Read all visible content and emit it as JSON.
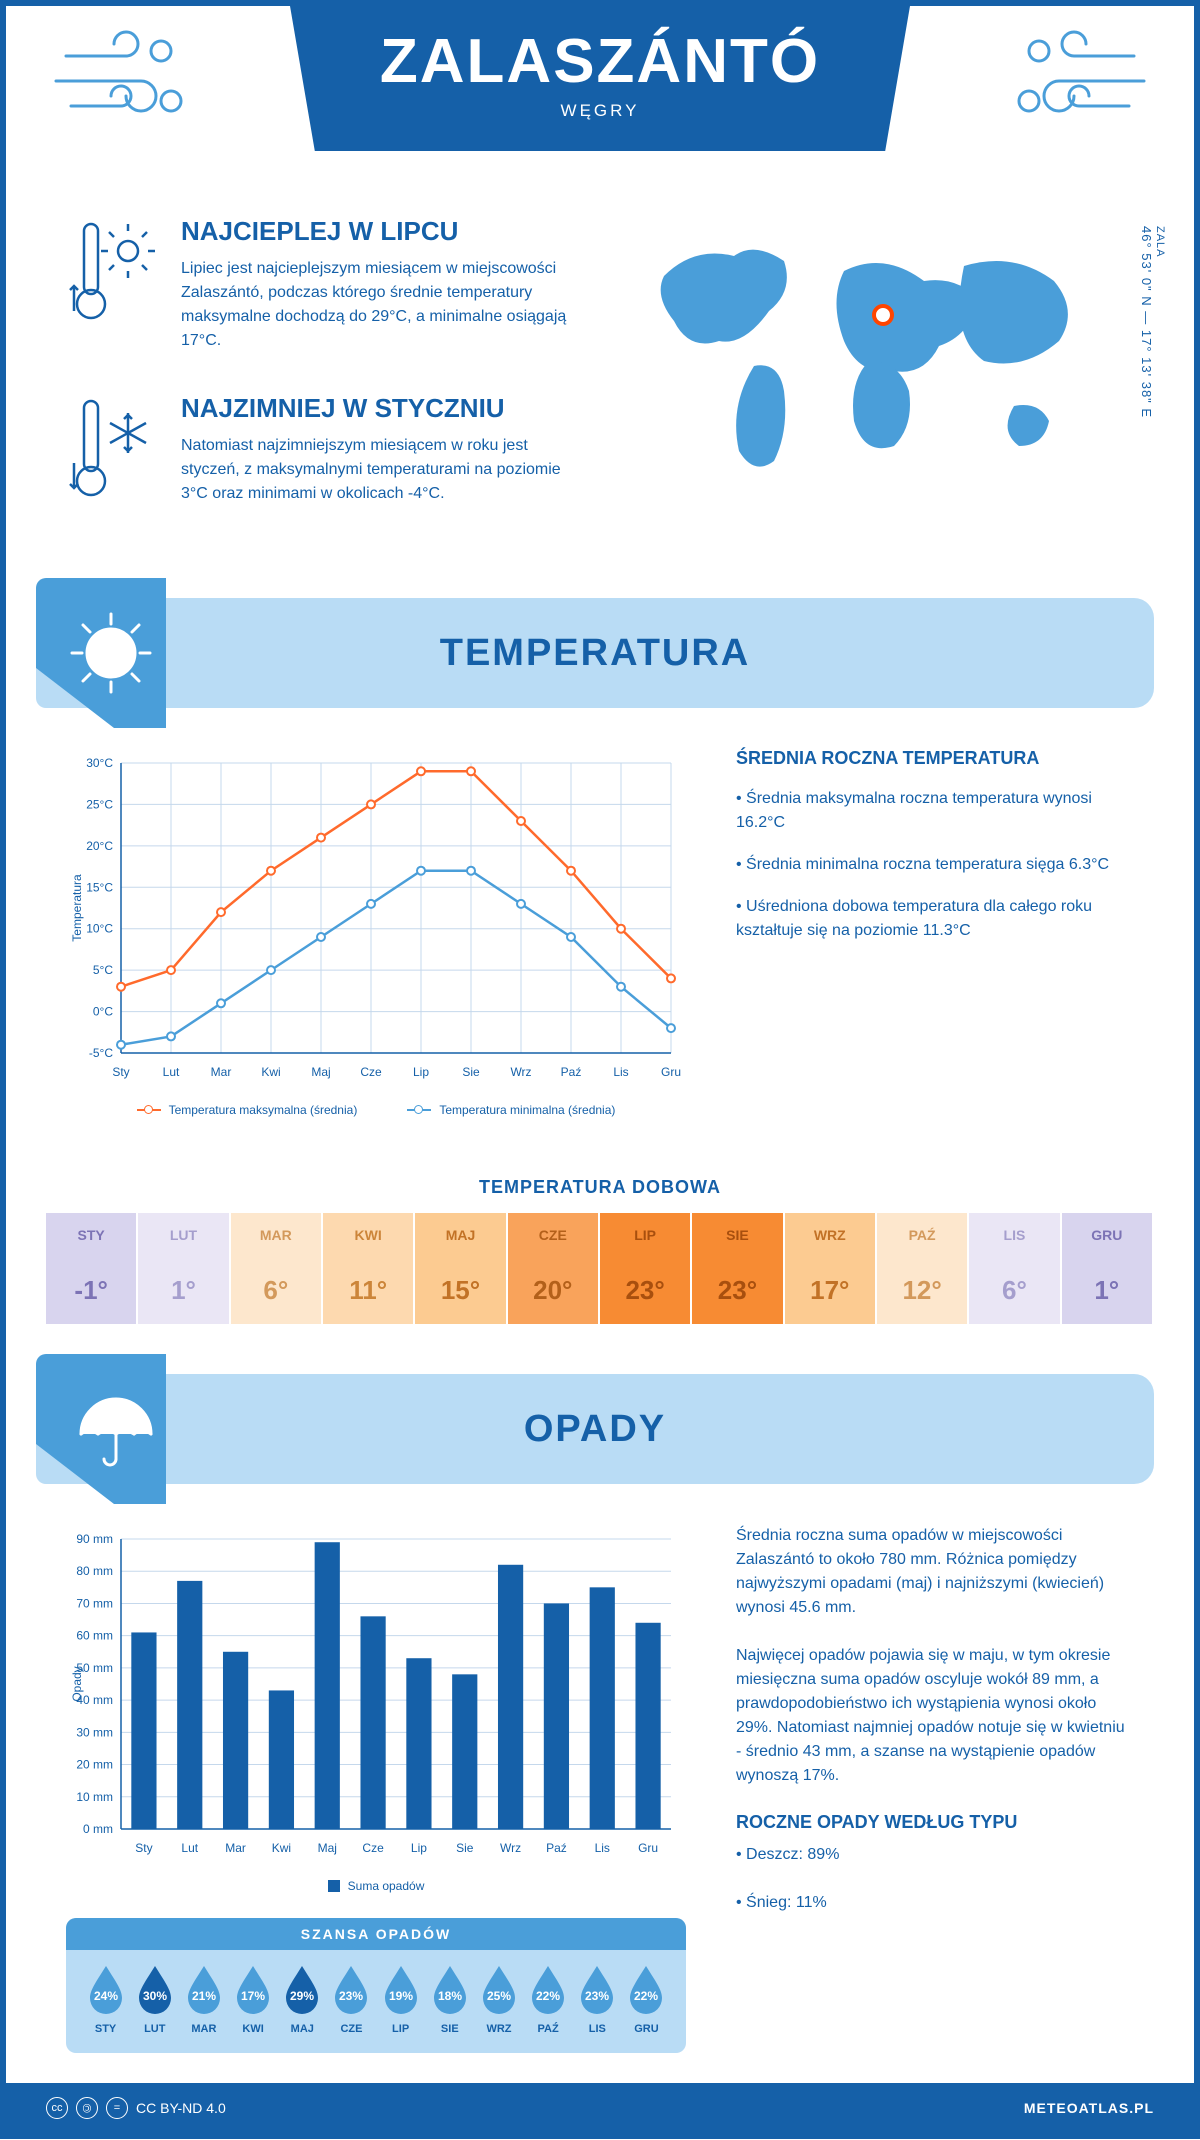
{
  "header": {
    "city": "ZALASZÁNTÓ",
    "country": "WĘGRY",
    "region": "ZALA",
    "coords": "46° 53' 0\" N — 17° 13' 38\" E"
  },
  "intro": {
    "hot": {
      "title": "NAJCIEPLEJ W LIPCU",
      "text": "Lipiec jest najcieplejszym miesiącem w miejscowości Zalaszántó, podczas którego średnie temperatury maksymalne dochodzą do 29°C, a minimalne osiągają 17°C."
    },
    "cold": {
      "title": "NAJZIMNIEJ W STYCZNIU",
      "text": "Natomiast najzimniejszym miesiącem w roku jest styczeń, z maksymalnymi temperaturami na poziomie 3°C oraz minimami w okolicach -4°C."
    }
  },
  "months": [
    "Sty",
    "Lut",
    "Mar",
    "Kwi",
    "Maj",
    "Cze",
    "Lip",
    "Sie",
    "Wrz",
    "Paź",
    "Lis",
    "Gru"
  ],
  "months_upper": [
    "STY",
    "LUT",
    "MAR",
    "KWI",
    "MAJ",
    "CZE",
    "LIP",
    "SIE",
    "WRZ",
    "PAŹ",
    "LIS",
    "GRU"
  ],
  "temperature": {
    "section_title": "TEMPERATURA",
    "chart": {
      "type": "line",
      "ylabel": "Temperatura",
      "ylim": [
        -5,
        30
      ],
      "ytick_step": 5,
      "y_suffix": "°C",
      "max_series": [
        3,
        5,
        12,
        17,
        21,
        25,
        29,
        29,
        23,
        17,
        10,
        4
      ],
      "min_series": [
        -4,
        -3,
        1,
        5,
        9,
        13,
        17,
        17,
        13,
        9,
        3,
        -2
      ],
      "max_color": "#ff6a2c",
      "min_color": "#4a9ed9",
      "grid_color": "#c5d8ec",
      "axis_color": "#1560a8",
      "background": "#ffffff",
      "legend_max": "Temperatura maksymalna (średnia)",
      "legend_min": "Temperatura minimalna (średnia)"
    },
    "info": {
      "title": "ŚREDNIA ROCZNA TEMPERATURA",
      "bullets": [
        "• Średnia maksymalna roczna temperatura wynosi 16.2°C",
        "• Średnia minimalna roczna temperatura sięga 6.3°C",
        "• Uśredniona dobowa temperatura dla całego roku kształtuje się na poziomie 11.3°C"
      ]
    },
    "daily": {
      "title": "TEMPERATURA DOBOWA",
      "values": [
        "-1°",
        "1°",
        "6°",
        "11°",
        "15°",
        "20°",
        "23°",
        "23°",
        "17°",
        "12°",
        "6°",
        "1°"
      ],
      "bg_colors": [
        "#d8d4ee",
        "#eae6f5",
        "#fde7cd",
        "#fdd9af",
        "#fccb91",
        "#f9a35b",
        "#f78b33",
        "#f78b33",
        "#fccb91",
        "#fde7cd",
        "#eae6f5",
        "#d8d4ee"
      ],
      "text_colors": [
        "#7c73b5",
        "#a59ecd",
        "#d3995b",
        "#cc8539",
        "#c27226",
        "#b3601a",
        "#a84f0e",
        "#a84f0e",
        "#c27226",
        "#d3995b",
        "#a59ecd",
        "#7c73b5"
      ]
    }
  },
  "precipitation": {
    "section_title": "OPADY",
    "chart": {
      "type": "bar",
      "ylabel": "Opady",
      "ylim": [
        0,
        90
      ],
      "ytick_step": 10,
      "y_suffix": " mm",
      "values": [
        61,
        77,
        55,
        43,
        89,
        66,
        53,
        48,
        82,
        70,
        75,
        64
      ],
      "bar_color": "#1560a8",
      "grid_color": "#c5d8ec",
      "axis_color": "#1560a8",
      "legend": "Suma opadów"
    },
    "info": {
      "p1": "Średnia roczna suma opadów w miejscowości Zalaszántó to około 780 mm. Różnica pomiędzy najwyższymi opadami (maj) i najniższymi (kwiecień) wynosi 45.6 mm.",
      "p2": "Najwięcej opadów pojawia się w maju, w tym okresie miesięczna suma opadów oscyluje wokół 89 mm, a prawdopodobieństwo ich wystąpienia wynosi około 29%. Natomiast najmniej opadów notuje się w kwietniu - średnio 43 mm, a szanse na wystąpienie opadów wynoszą 17%.",
      "type_title": "ROCZNE OPADY WEDŁUG TYPU",
      "type_bullets": [
        "• Deszcz: 89%",
        "• Śnieg: 11%"
      ]
    },
    "chance": {
      "title": "SZANSA OPADÓW",
      "values": [
        24,
        30,
        21,
        17,
        29,
        23,
        19,
        18,
        25,
        22,
        23,
        22
      ],
      "colors": [
        "#4a9ed9",
        "#1560a8",
        "#4a9ed9",
        "#4a9ed9",
        "#1560a8",
        "#4a9ed9",
        "#4a9ed9",
        "#4a9ed9",
        "#4a9ed9",
        "#4a9ed9",
        "#4a9ed9",
        "#4a9ed9"
      ]
    }
  },
  "footer": {
    "license": "CC BY-ND 4.0",
    "site": "METEOATLAS.PL"
  }
}
